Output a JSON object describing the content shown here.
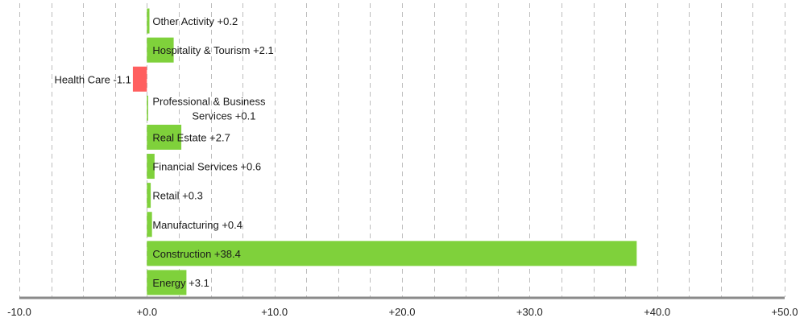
{
  "chart_data": {
    "type": "bar",
    "orientation": "horizontal",
    "title": "",
    "xlabel": "",
    "ylabel": "",
    "xlim": [
      -10,
      50
    ],
    "x_ticks": [
      -10,
      0,
      10,
      20,
      30,
      40,
      50
    ],
    "x_tick_labels": [
      "-10.0",
      "+0.0",
      "+10.0",
      "+20.0",
      "+30.0",
      "+40.0",
      "+50.0"
    ],
    "grid": true,
    "legend": "none",
    "colors": {
      "positive": "#7fd13b",
      "negative": "#ff5f5f"
    },
    "bars": [
      {
        "category": "Other Activity",
        "value": 0.2,
        "label": "Other Activity +0.2"
      },
      {
        "category": "Hospitality & Tourism",
        "value": 2.1,
        "label": "Hospitality & Tourism +2.1"
      },
      {
        "category": "Health Care",
        "value": -1.1,
        "label": "Health Care -1.1"
      },
      {
        "category": "Professional & Business Services",
        "value": 0.1,
        "label_lines": [
          "Professional & Business",
          "Services +0.1"
        ]
      },
      {
        "category": "Real Estate",
        "value": 2.7,
        "label": "Real Estate +2.7"
      },
      {
        "category": "Financial Services",
        "value": 0.6,
        "label": "Financial Services +0.6"
      },
      {
        "category": "Retail",
        "value": 0.3,
        "label": "Retail +0.3"
      },
      {
        "category": "Manufacturing",
        "value": 0.4,
        "label": "Manufacturing +0.4"
      },
      {
        "category": "Construction",
        "value": 38.4,
        "label": "Construction +38.4"
      },
      {
        "category": "Energy",
        "value": 3.1,
        "label": "Energy +3.1"
      }
    ]
  }
}
